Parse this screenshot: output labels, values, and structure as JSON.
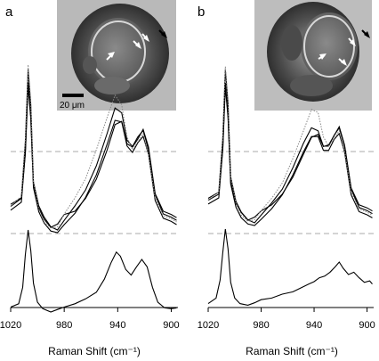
{
  "chart_data": [
    {
      "panel": "a",
      "type": "line",
      "xlabel": "Raman Shift (cm⁻¹)",
      "xlim": [
        1020,
        895
      ],
      "x_ticks": [
        "1020",
        "980",
        "940",
        "900"
      ],
      "inset": {
        "kind": "micrograph",
        "scale_bar_label": "20 μm",
        "arrows": [
          "white",
          "white",
          "white",
          "black"
        ]
      },
      "dashed_baselines": 2,
      "series_upper": [
        {
          "style": "solid",
          "points": [
            [
              1020,
              0.16
            ],
            [
              1012,
              0.2
            ],
            [
              1009,
              0.55
            ],
            [
              1007,
              1.0
            ],
            [
              1005,
              0.78
            ],
            [
              1003,
              0.3
            ],
            [
              999,
              0.15
            ],
            [
              995,
              0.08
            ],
            [
              990,
              0.02
            ],
            [
              985,
              0.0
            ],
            [
              980,
              0.06
            ],
            [
              972,
              0.15
            ],
            [
              964,
              0.25
            ],
            [
              956,
              0.4
            ],
            [
              948,
              0.6
            ],
            [
              942,
              0.76
            ],
            [
              937,
              0.73
            ],
            [
              933,
              0.56
            ],
            [
              929,
              0.52
            ],
            [
              925,
              0.58
            ],
            [
              921,
              0.62
            ],
            [
              917,
              0.5
            ],
            [
              912,
              0.22
            ],
            [
              906,
              0.1
            ],
            [
              900,
              0.08
            ],
            [
              896,
              0.06
            ]
          ]
        },
        {
          "style": "solid",
          "points": [
            [
              1020,
              0.14
            ],
            [
              1012,
              0.19
            ],
            [
              1009,
              0.5
            ],
            [
              1007,
              0.94
            ],
            [
              1005,
              0.72
            ],
            [
              1003,
              0.28
            ],
            [
              999,
              0.13
            ],
            [
              995,
              0.06
            ],
            [
              990,
              0.01
            ],
            [
              985,
              0.0
            ],
            [
              980,
              0.05
            ],
            [
              972,
              0.12
            ],
            [
              964,
              0.22
            ],
            [
              956,
              0.36
            ],
            [
              948,
              0.55
            ],
            [
              942,
              0.7
            ],
            [
              937,
              0.69
            ],
            [
              933,
              0.54
            ],
            [
              929,
              0.5
            ],
            [
              925,
              0.56
            ],
            [
              921,
              0.6
            ],
            [
              917,
              0.49
            ],
            [
              912,
              0.2
            ],
            [
              906,
              0.09
            ],
            [
              900,
              0.07
            ],
            [
              896,
              0.05
            ]
          ]
        },
        {
          "style": "solid",
          "points": [
            [
              1020,
              0.13
            ],
            [
              1012,
              0.18
            ],
            [
              1009,
              0.46
            ],
            [
              1007,
              0.88
            ],
            [
              1005,
              0.68
            ],
            [
              1003,
              0.26
            ],
            [
              999,
              0.12
            ],
            [
              995,
              0.05
            ],
            [
              990,
              0.0
            ],
            [
              985,
              0.02
            ],
            [
              980,
              0.08
            ],
            [
              972,
              0.1
            ],
            [
              964,
              0.18
            ],
            [
              956,
              0.3
            ],
            [
              948,
              0.48
            ],
            [
              942,
              0.64
            ],
            [
              937,
              0.66
            ],
            [
              933,
              0.52
            ],
            [
              929,
              0.5
            ],
            [
              925,
              0.55
            ],
            [
              921,
              0.61
            ],
            [
              917,
              0.5
            ],
            [
              912,
              0.21
            ],
            [
              906,
              0.1
            ],
            [
              900,
              0.08
            ],
            [
              896,
              0.06
            ]
          ]
        },
        {
          "style": "dotted",
          "points": [
            [
              1020,
              0.15
            ],
            [
              1012,
              0.21
            ],
            [
              1009,
              0.57
            ],
            [
              1007,
              1.03
            ],
            [
              1005,
              0.8
            ],
            [
              1003,
              0.3
            ],
            [
              999,
              0.13
            ],
            [
              995,
              0.05
            ],
            [
              990,
              0.01
            ],
            [
              985,
              0.02
            ],
            [
              980,
              0.1
            ],
            [
              972,
              0.2
            ],
            [
              964,
              0.32
            ],
            [
              956,
              0.5
            ],
            [
              948,
              0.7
            ],
            [
              942,
              0.84
            ],
            [
              937,
              0.78
            ],
            [
              933,
              0.58
            ],
            [
              929,
              0.5
            ],
            [
              925,
              0.55
            ],
            [
              921,
              0.6
            ],
            [
              917,
              0.47
            ],
            [
              912,
              0.2
            ],
            [
              906,
              0.09
            ],
            [
              900,
              0.07
            ],
            [
              896,
              0.05
            ]
          ]
        }
      ],
      "series_lower": {
        "style": "solid",
        "points": [
          [
            1020,
            0.06
          ],
          [
            1014,
            0.1
          ],
          [
            1011,
            0.3
          ],
          [
            1009,
            0.7
          ],
          [
            1007,
            1.0
          ],
          [
            1005,
            0.75
          ],
          [
            1003,
            0.35
          ],
          [
            1000,
            0.12
          ],
          [
            996,
            0.04
          ],
          [
            990,
            0.0
          ],
          [
            985,
            0.03
          ],
          [
            980,
            0.06
          ],
          [
            972,
            0.1
          ],
          [
            964,
            0.16
          ],
          [
            956,
            0.24
          ],
          [
            950,
            0.4
          ],
          [
            945,
            0.6
          ],
          [
            941,
            0.73
          ],
          [
            938,
            0.68
          ],
          [
            934,
            0.52
          ],
          [
            930,
            0.45
          ],
          [
            926,
            0.55
          ],
          [
            922,
            0.64
          ],
          [
            918,
            0.55
          ],
          [
            914,
            0.3
          ],
          [
            910,
            0.12
          ],
          [
            905,
            0.05
          ],
          [
            900,
            0.04
          ],
          [
            896,
            0.05
          ]
        ]
      }
    },
    {
      "panel": "b",
      "type": "line",
      "xlabel": "Raman Shift (cm⁻¹)",
      "xlim": [
        1020,
        895
      ],
      "x_ticks": [
        "1020",
        "980",
        "940",
        "900"
      ],
      "inset": {
        "kind": "micrograph",
        "arrows": [
          "white",
          "white",
          "white",
          "black"
        ]
      },
      "dashed_baselines": 2,
      "series_upper": [
        {
          "style": "solid",
          "points": [
            [
              1020,
              0.16
            ],
            [
              1012,
              0.2
            ],
            [
              1009,
              0.55
            ],
            [
              1007,
              1.0
            ],
            [
              1005,
              0.78
            ],
            [
              1003,
              0.3
            ],
            [
              999,
              0.14
            ],
            [
              995,
              0.07
            ],
            [
              990,
              0.02
            ],
            [
              985,
              0.0
            ],
            [
              980,
              0.05
            ],
            [
              972,
              0.13
            ],
            [
              964,
              0.22
            ],
            [
              956,
              0.36
            ],
            [
              948,
              0.52
            ],
            [
              942,
              0.62
            ],
            [
              937,
              0.6
            ],
            [
              933,
              0.5
            ],
            [
              929,
              0.5
            ],
            [
              925,
              0.57
            ],
            [
              921,
              0.62
            ],
            [
              917,
              0.5
            ],
            [
              912,
              0.22
            ],
            [
              906,
              0.1
            ],
            [
              900,
              0.08
            ],
            [
              896,
              0.06
            ]
          ]
        },
        {
          "style": "solid",
          "points": [
            [
              1020,
              0.14
            ],
            [
              1012,
              0.18
            ],
            [
              1009,
              0.5
            ],
            [
              1007,
              0.93
            ],
            [
              1005,
              0.72
            ],
            [
              1003,
              0.27
            ],
            [
              999,
              0.12
            ],
            [
              995,
              0.05
            ],
            [
              990,
              0.01
            ],
            [
              985,
              0.0
            ],
            [
              980,
              0.04
            ],
            [
              972,
              0.11
            ],
            [
              964,
              0.2
            ],
            [
              956,
              0.33
            ],
            [
              948,
              0.48
            ],
            [
              942,
              0.58
            ],
            [
              937,
              0.58
            ],
            [
              933,
              0.49
            ],
            [
              929,
              0.49
            ],
            [
              925,
              0.56
            ],
            [
              921,
              0.6
            ],
            [
              917,
              0.48
            ],
            [
              912,
              0.2
            ],
            [
              906,
              0.09
            ],
            [
              900,
              0.07
            ],
            [
              896,
              0.05
            ]
          ]
        },
        {
          "style": "solid",
          "points": [
            [
              1020,
              0.13
            ],
            [
              1012,
              0.17
            ],
            [
              1009,
              0.46
            ],
            [
              1007,
              0.87
            ],
            [
              1005,
              0.67
            ],
            [
              1003,
              0.25
            ],
            [
              999,
              0.11
            ],
            [
              995,
              0.05
            ],
            [
              990,
              0.0
            ],
            [
              985,
              0.02
            ],
            [
              980,
              0.06
            ],
            [
              972,
              0.1
            ],
            [
              964,
              0.17
            ],
            [
              956,
              0.28
            ],
            [
              948,
              0.43
            ],
            [
              942,
              0.54
            ],
            [
              937,
              0.56
            ],
            [
              933,
              0.48
            ],
            [
              929,
              0.49
            ],
            [
              925,
              0.55
            ],
            [
              921,
              0.61
            ],
            [
              917,
              0.49
            ],
            [
              912,
              0.21
            ],
            [
              906,
              0.1
            ],
            [
              900,
              0.08
            ],
            [
              896,
              0.06
            ]
          ]
        },
        {
          "style": "dotted",
          "points": [
            [
              1020,
              0.15
            ],
            [
              1012,
              0.2
            ],
            [
              1009,
              0.57
            ],
            [
              1007,
              1.02
            ],
            [
              1005,
              0.8
            ],
            [
              1003,
              0.3
            ],
            [
              999,
              0.13
            ],
            [
              995,
              0.05
            ],
            [
              990,
              0.01
            ],
            [
              985,
              0.02
            ],
            [
              980,
              0.08
            ],
            [
              972,
              0.16
            ],
            [
              964,
              0.26
            ],
            [
              956,
              0.42
            ],
            [
              948,
              0.6
            ],
            [
              942,
              0.74
            ],
            [
              937,
              0.72
            ],
            [
              933,
              0.56
            ],
            [
              929,
              0.5
            ],
            [
              925,
              0.55
            ],
            [
              921,
              0.6
            ],
            [
              917,
              0.47
            ],
            [
              912,
              0.2
            ],
            [
              906,
              0.09
            ],
            [
              900,
              0.07
            ],
            [
              896,
              0.05
            ]
          ]
        }
      ],
      "series_lower": {
        "style": "solid",
        "points": [
          [
            1020,
            0.05
          ],
          [
            1014,
            0.12
          ],
          [
            1011,
            0.35
          ],
          [
            1009,
            0.7
          ],
          [
            1007,
            1.0
          ],
          [
            1005,
            0.75
          ],
          [
            1003,
            0.32
          ],
          [
            1000,
            0.12
          ],
          [
            996,
            0.05
          ],
          [
            990,
            0.03
          ],
          [
            985,
            0.06
          ],
          [
            980,
            0.1
          ],
          [
            972,
            0.12
          ],
          [
            964,
            0.17
          ],
          [
            956,
            0.2
          ],
          [
            950,
            0.25
          ],
          [
            944,
            0.3
          ],
          [
            940,
            0.33
          ],
          [
            936,
            0.38
          ],
          [
            932,
            0.4
          ],
          [
            928,
            0.45
          ],
          [
            924,
            0.52
          ],
          [
            921,
            0.58
          ],
          [
            918,
            0.5
          ],
          [
            914,
            0.42
          ],
          [
            910,
            0.45
          ],
          [
            906,
            0.38
          ],
          [
            902,
            0.32
          ],
          [
            898,
            0.34
          ],
          [
            896,
            0.3
          ]
        ]
      }
    }
  ]
}
